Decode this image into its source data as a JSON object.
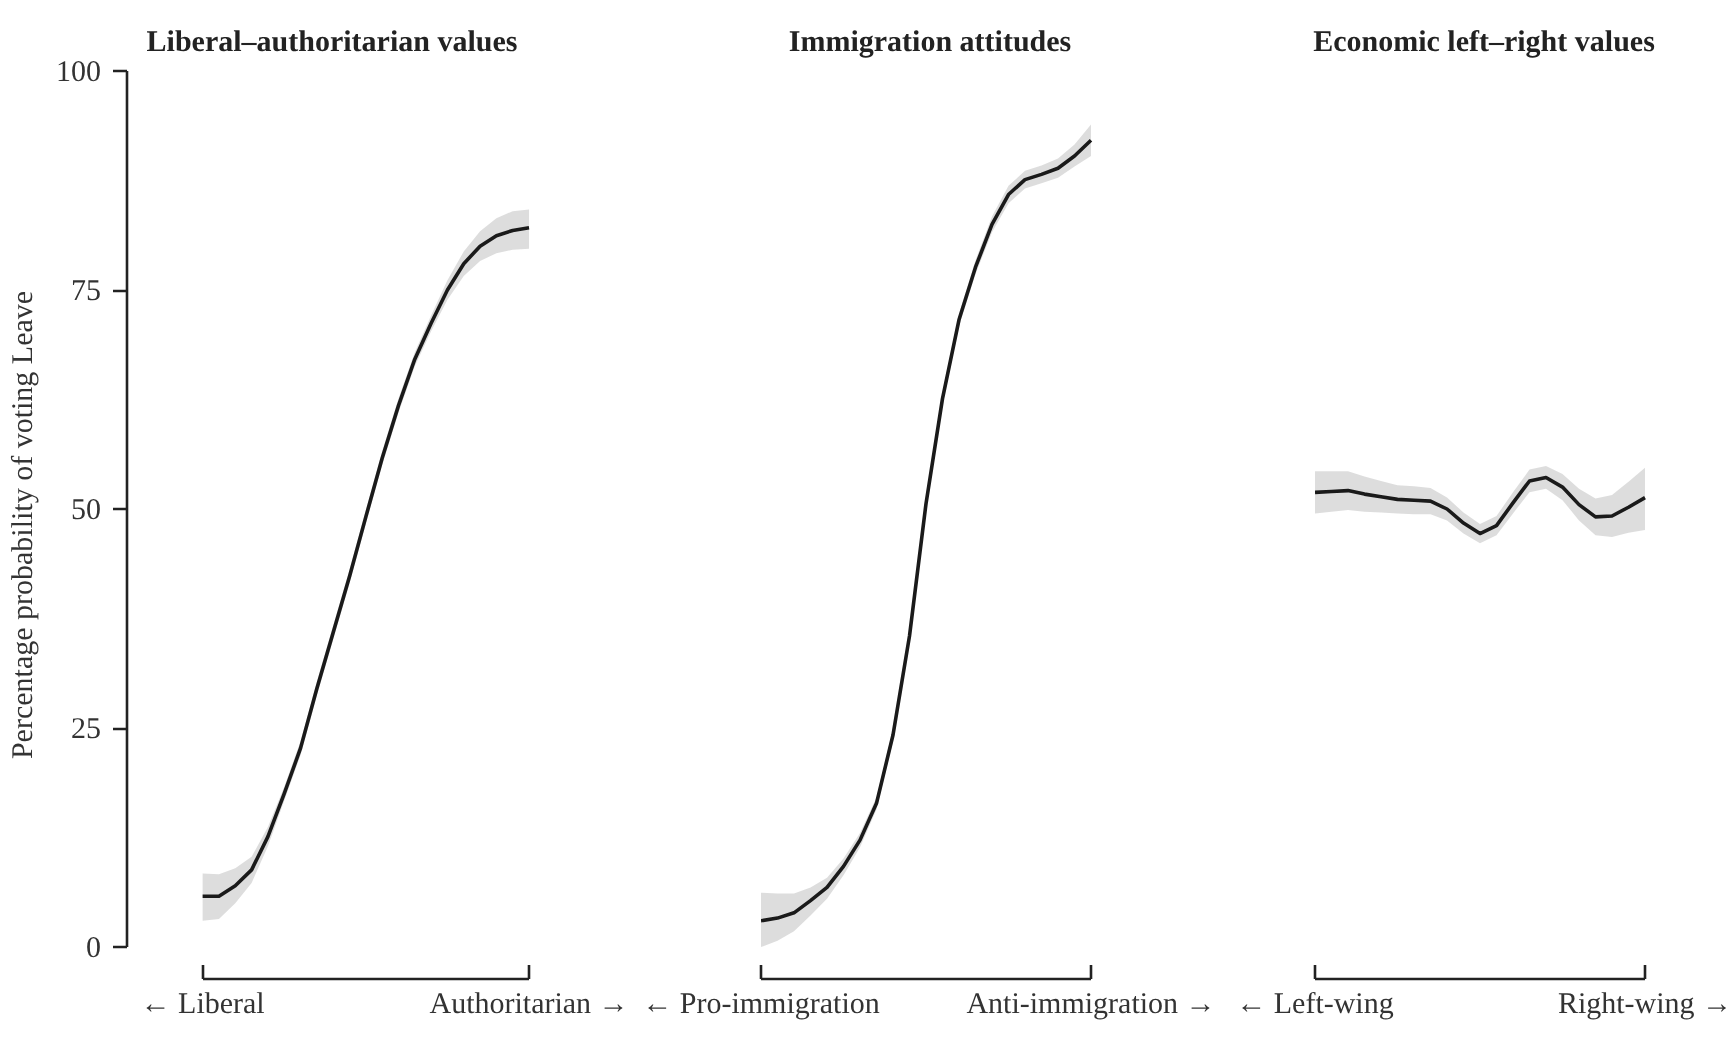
{
  "chart_data": [
    {
      "type": "line",
      "title": "Liberal–authoritarian values",
      "ylabel": "Percentage probability of voting Leave",
      "ylim": [
        0,
        100
      ],
      "yticks": [
        0,
        25,
        50,
        75,
        100
      ],
      "categories": [
        "← Liberal",
        null,
        null,
        null,
        null,
        null,
        null,
        null,
        null,
        null,
        null,
        null,
        null,
        null,
        null,
        null,
        null,
        null,
        null,
        null,
        "Authoritarian →"
      ],
      "series": [
        {
          "color": "#1a1a1a",
          "values": [
            5.8,
            5.8,
            7,
            8.8,
            12.6,
            17.5,
            22.7,
            29.5,
            35.9,
            42.3,
            49.1,
            55.8,
            61.8,
            67.1,
            71.2,
            75,
            78,
            80,
            81.2,
            81.8,
            82.1
          ],
          "lower": [
            3,
            3.2,
            5,
            7.3,
            11.5,
            16.7,
            21.9,
            28.7,
            35.1,
            41.5,
            48.3,
            55,
            61,
            66.3,
            70.3,
            73.9,
            76.6,
            78.3,
            79.2,
            79.6,
            79.7
          ],
          "upper": [
            8.4,
            8.3,
            9,
            10.3,
            13.7,
            18.3,
            23.5,
            30.3,
            36.7,
            43.1,
            49.9,
            56.6,
            62.6,
            67.9,
            72.1,
            76.1,
            79.4,
            81.7,
            83.2,
            84,
            84.2
          ]
        }
      ]
    },
    {
      "type": "line",
      "title": "Immigration attitudes",
      "ylim": [
        0,
        100
      ],
      "yticks": [
        0,
        25,
        50,
        75,
        100
      ],
      "tick_labels": "x",
      "categories": [
        "← Pro-immigration",
        null,
        null,
        null,
        null,
        null,
        null,
        null,
        null,
        null,
        null,
        null,
        null,
        null,
        null,
        null,
        null,
        null,
        null,
        null,
        "Anti-immigration →"
      ],
      "series": [
        {
          "color": "#1a1a1a",
          "values": [
            3,
            3.3,
            3.9,
            5.3,
            6.8,
            9.2,
            12.2,
            16.4,
            24.2,
            35.5,
            50.6,
            62.6,
            71.6,
            77.6,
            82.5,
            85.9,
            87.6,
            88.2,
            88.9,
            90.3,
            92.1
          ],
          "lower": [
            0,
            0.7,
            1.8,
            3.6,
            5.5,
            8.2,
            11.4,
            15.7,
            23.5,
            34.8,
            49.9,
            61.9,
            70.9,
            76.8,
            81.6,
            84.9,
            86.6,
            87.2,
            87.8,
            89.1,
            90.3
          ],
          "upper": [
            6.2,
            6.1,
            6.1,
            6.8,
            7.9,
            10.1,
            13,
            17.1,
            24.9,
            36.2,
            51.3,
            63.3,
            72.3,
            78.4,
            83.4,
            86.9,
            88.6,
            89.2,
            90,
            91.6,
            93.9
          ]
        }
      ]
    },
    {
      "type": "line",
      "title": "Economic left–right values",
      "ylim": [
        0,
        100
      ],
      "yticks": [
        0,
        25,
        50,
        75,
        100
      ],
      "tick_labels": "x",
      "categories": [
        "← Left-wing",
        null,
        null,
        null,
        null,
        null,
        null,
        null,
        null,
        null,
        null,
        null,
        null,
        null,
        null,
        null,
        null,
        null,
        null,
        null,
        "Right-wing →"
      ],
      "series": [
        {
          "color": "#1a1a1a",
          "values": [
            51.9,
            52,
            52.1,
            51.7,
            51.4,
            51.1,
            51,
            50.9,
            50,
            48.4,
            47.2,
            48.1,
            50.7,
            53.2,
            53.6,
            52.5,
            50.5,
            49.1,
            49.2,
            50.2,
            51.3
          ],
          "lower": [
            49.5,
            49.7,
            49.9,
            49.7,
            49.6,
            49.5,
            49.4,
            49.4,
            48.7,
            47.2,
            46.1,
            47,
            49.5,
            51.9,
            52.3,
            51,
            48.7,
            47,
            46.8,
            47.3,
            47.6
          ],
          "upper": [
            54.3,
            54.3,
            54.3,
            53.7,
            53.2,
            52.7,
            52.6,
            52.4,
            51.3,
            49.6,
            48.3,
            49.2,
            51.9,
            54.5,
            54.9,
            54,
            52.3,
            51.2,
            51.6,
            53.1,
            54.7
          ]
        }
      ]
    }
  ]
}
